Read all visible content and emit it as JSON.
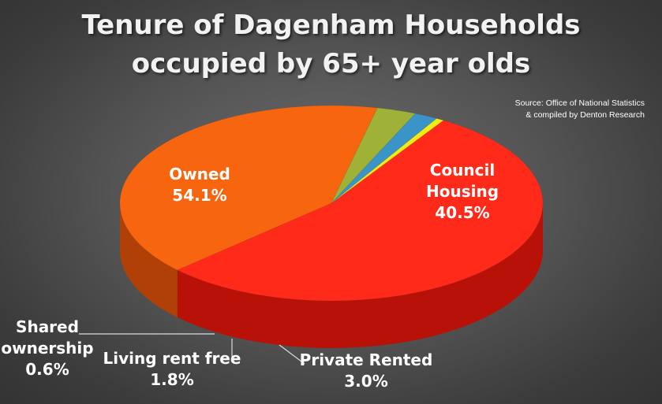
{
  "chart_data": {
    "type": "pie",
    "style": "3d",
    "title_lines": [
      "Tenure of Dagenham Households",
      "occupied by 65+ year olds"
    ],
    "source_lines": [
      "Source: Office of National Statistics",
      "& compiled by Denton Research"
    ],
    "slices": [
      {
        "label_lines": [
          "Owned"
        ],
        "value_text": "54.1%",
        "value": 54.1,
        "color": "#ff2a1a",
        "side_color": "#b81208"
      },
      {
        "label_lines": [
          "Council",
          "Housing"
        ],
        "value_text": "40.5%",
        "value": 40.5,
        "color": "#f7650f",
        "side_color": "#b04006"
      },
      {
        "label_lines": [
          "Private Rented"
        ],
        "value_text": "3.0%",
        "value": 3.0,
        "color": "#9fb136",
        "side_color": "#6a7a1c"
      },
      {
        "label_lines": [
          "Living rent free"
        ],
        "value_text": "1.8%",
        "value": 1.8,
        "color": "#3a94c8",
        "side_color": "#236a94"
      },
      {
        "label_lines": [
          "Shared",
          "ownership"
        ],
        "value_text": "0.6%",
        "value": 0.6,
        "color": "#f2ec14",
        "side_color": "#bdb40a"
      }
    ]
  }
}
